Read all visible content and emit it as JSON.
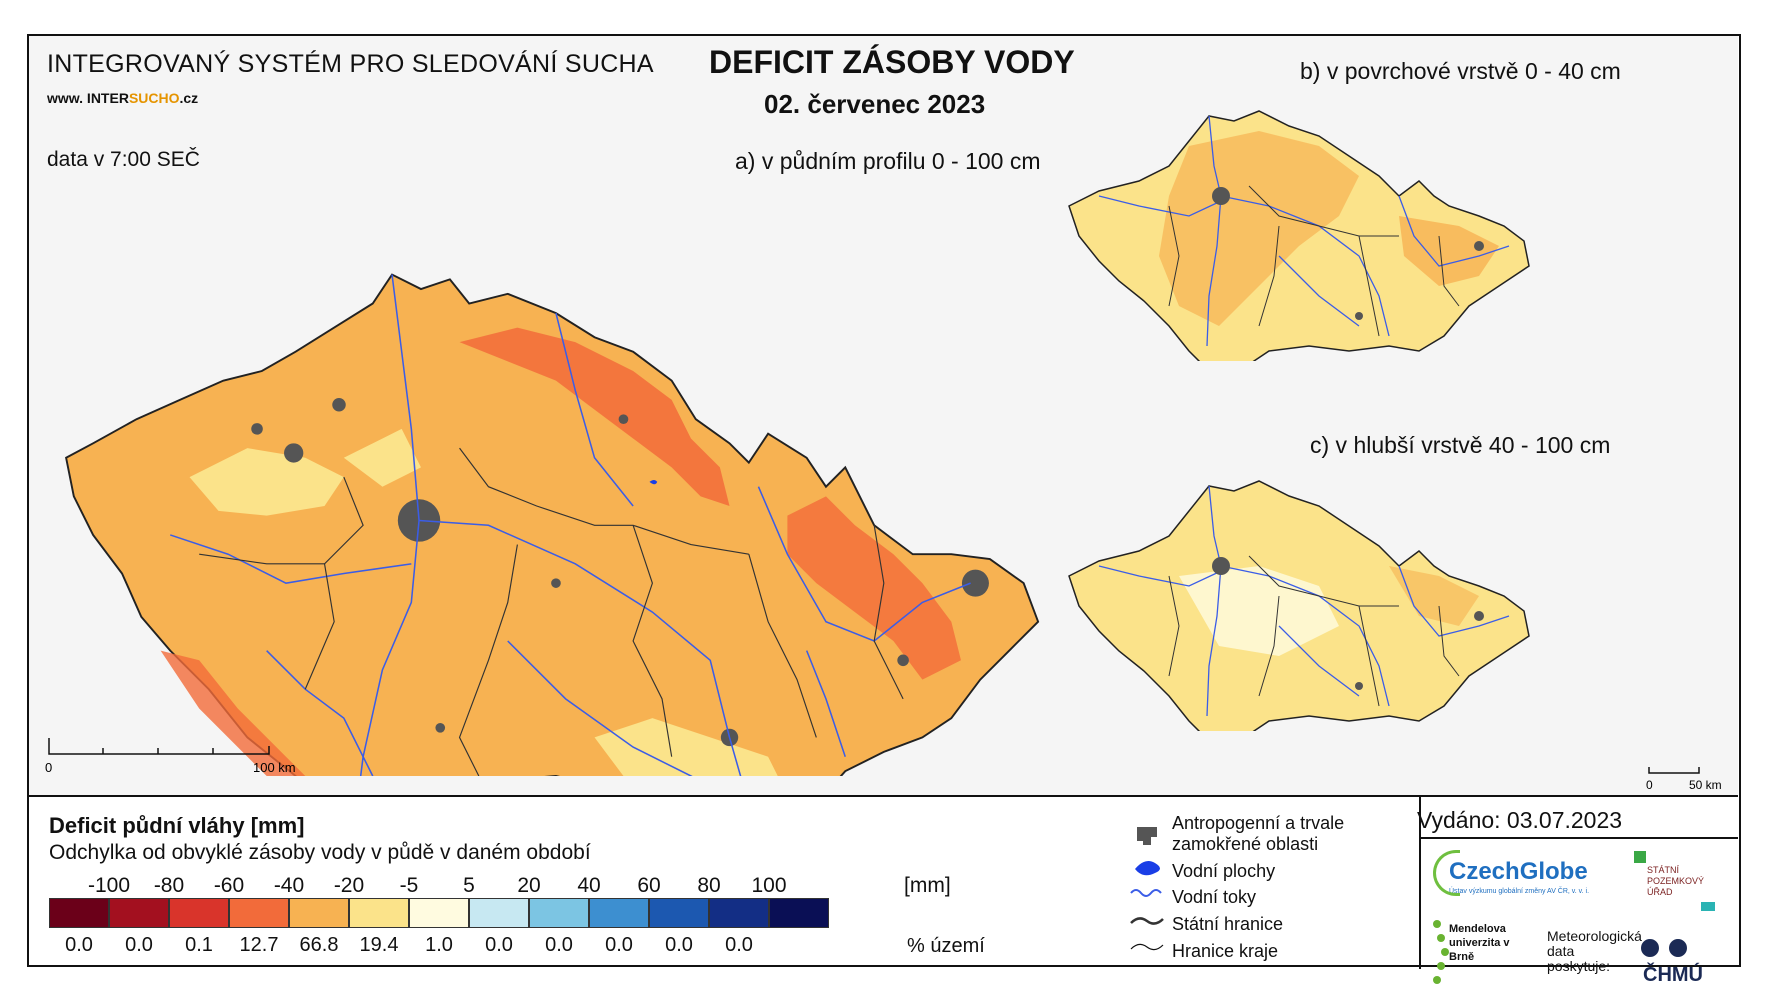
{
  "header": {
    "system": "INTEGROVANÝ SYSTÉM PRO SLEDOVÁNÍ SUCHA",
    "website_prefix": "www. INTER",
    "website_accent": "SUCHO",
    "website_suffix": ".cz",
    "data_time": "data v 7:00 SEČ",
    "title": "DEFICIT ZÁSOBY VODY",
    "date": "02. červenec 2023"
  },
  "panels": {
    "a": "a) v půdním profilu 0 - 100 cm",
    "b": "b) v povrchové vrstvě 0 - 40 cm",
    "c": "c) v hlubší vrstvě 40 - 100 cm"
  },
  "scalebars": {
    "main": {
      "start": "0",
      "end": "100 km"
    },
    "small": {
      "start": "0",
      "end": "50 km"
    }
  },
  "legend": {
    "title": "Deficit půdní vláhy  [mm]",
    "subtitle": "Odchylka od obvyklé zásoby vody v půdě v daném období",
    "ticks": [
      "-100",
      "-80",
      "-60",
      "-40",
      "-20",
      "-5",
      "5",
      "20",
      "40",
      "60",
      "80",
      "100"
    ],
    "unit": "[mm]",
    "colors": [
      "#6b0019",
      "#a3101f",
      "#d9342b",
      "#f26b3a",
      "#f7b252",
      "#fbe38a",
      "#fffbe0",
      "#c7e8f2",
      "#7cc5e3",
      "#3d8fd0",
      "#1c58b0",
      "#132e85",
      "#0a0f55"
    ],
    "percentages": [
      "0.0",
      "0.0",
      "0.1",
      "12.7",
      "66.8",
      "19.4",
      "1.0",
      "0.0",
      "0.0",
      "0.0",
      "0.0",
      "0.0"
    ],
    "percent_label": "% území"
  },
  "symbols": {
    "anthropogenic": "Antropogenní a trvale zamokřené oblasti",
    "water_bodies": "Vodní plochy",
    "rivers": "Vodní toky",
    "state_border": "Státní hranice",
    "region_border": "Hranice kraje"
  },
  "issued": "Vydáno: 03.07.2023",
  "logos": {
    "czechglobe": "CzechGlobe",
    "czechglobe_sub": "Ústav výzkumu globální změny AV ČR, v. v. i.",
    "spu": "STÁTNÍ POZEMKOVÝ ÚŘAD",
    "mendel": "Mendelova univerzita v Brně",
    "meteo": "Meteorologická data poskytuje:",
    "chmu": "ČHMÚ"
  },
  "map_colors": {
    "background": "#f5f5f5",
    "main_fill": "#f7b252",
    "deficit_dark": "#f26b3a",
    "light_fill": "#fbe38a",
    "river": "#3b5de7",
    "border": "#333333",
    "urban": "#555555"
  }
}
